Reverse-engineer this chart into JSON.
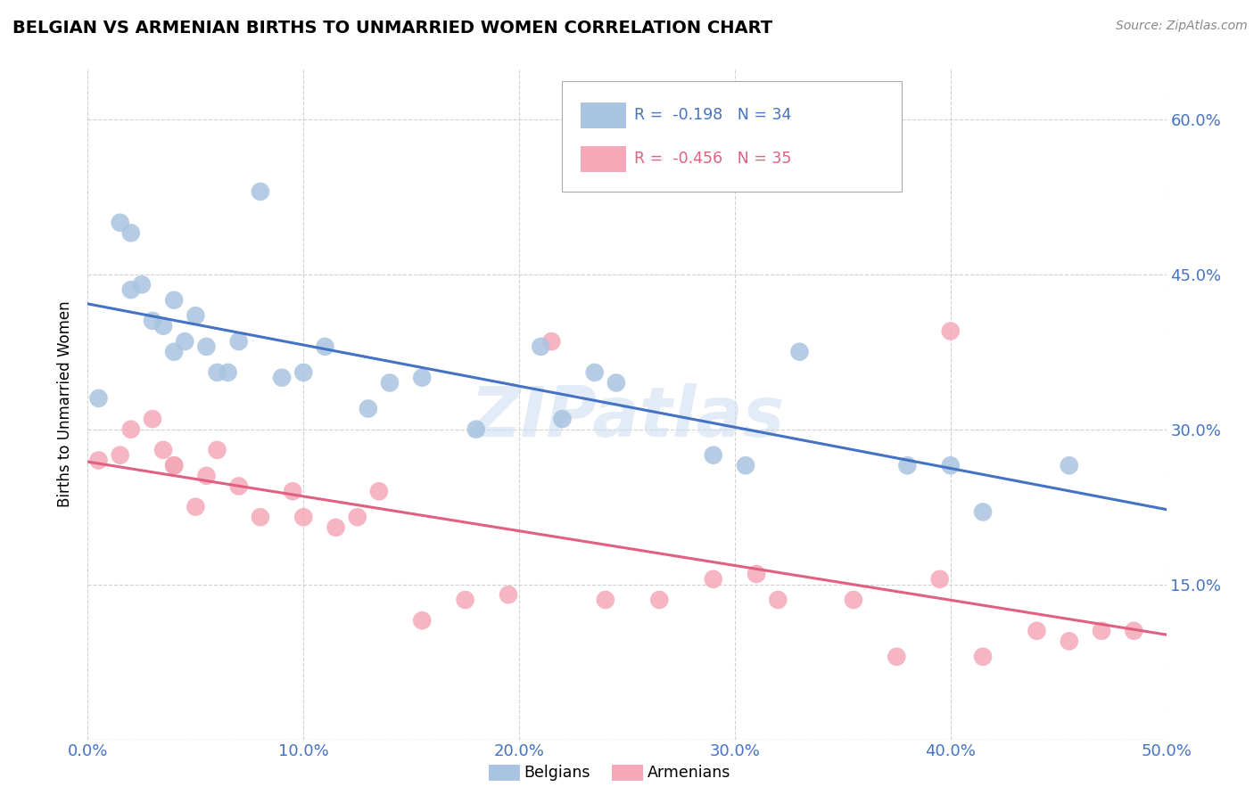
{
  "title": "BELGIAN VS ARMENIAN BIRTHS TO UNMARRIED WOMEN CORRELATION CHART",
  "source": "Source: ZipAtlas.com",
  "ylabel": "Births to Unmarried Women",
  "xlim": [
    0.0,
    0.5
  ],
  "ylim": [
    0.0,
    0.65
  ],
  "xticks": [
    0.0,
    0.1,
    0.2,
    0.3,
    0.4,
    0.5
  ],
  "yticks": [
    0.0,
    0.15,
    0.3,
    0.45,
    0.6
  ],
  "ytick_labels_right": [
    "",
    "15.0%",
    "30.0%",
    "45.0%",
    "60.0%"
  ],
  "xtick_labels": [
    "0.0%",
    "10.0%",
    "20.0%",
    "30.0%",
    "40.0%",
    "50.0%"
  ],
  "belgian_color": "#a8c4e0",
  "armenian_color": "#f4a8b8",
  "belgian_line_color": "#4472c4",
  "armenian_line_color": "#e06080",
  "R_belgian": -0.198,
  "N_belgian": 34,
  "R_armenian": -0.456,
  "N_armenian": 35,
  "watermark": "ZIPatlas",
  "belgian_x": [
    0.005,
    0.015,
    0.02,
    0.02,
    0.025,
    0.03,
    0.035,
    0.04,
    0.04,
    0.045,
    0.05,
    0.055,
    0.06,
    0.065,
    0.07,
    0.08,
    0.09,
    0.1,
    0.11,
    0.13,
    0.14,
    0.155,
    0.18,
    0.21,
    0.22,
    0.235,
    0.245,
    0.29,
    0.305,
    0.33,
    0.38,
    0.4,
    0.415,
    0.455
  ],
  "belgian_y": [
    0.33,
    0.5,
    0.49,
    0.435,
    0.44,
    0.405,
    0.4,
    0.425,
    0.375,
    0.385,
    0.41,
    0.38,
    0.355,
    0.355,
    0.385,
    0.53,
    0.35,
    0.355,
    0.38,
    0.32,
    0.345,
    0.35,
    0.3,
    0.38,
    0.31,
    0.355,
    0.345,
    0.275,
    0.265,
    0.375,
    0.265,
    0.265,
    0.22,
    0.265
  ],
  "armenian_x": [
    0.005,
    0.015,
    0.02,
    0.03,
    0.035,
    0.04,
    0.04,
    0.05,
    0.055,
    0.06,
    0.07,
    0.08,
    0.095,
    0.1,
    0.115,
    0.125,
    0.135,
    0.155,
    0.175,
    0.195,
    0.215,
    0.24,
    0.265,
    0.29,
    0.31,
    0.32,
    0.355,
    0.375,
    0.395,
    0.4,
    0.415,
    0.44,
    0.455,
    0.47,
    0.485
  ],
  "armenian_y": [
    0.27,
    0.275,
    0.3,
    0.31,
    0.28,
    0.265,
    0.265,
    0.225,
    0.255,
    0.28,
    0.245,
    0.215,
    0.24,
    0.215,
    0.205,
    0.215,
    0.24,
    0.115,
    0.135,
    0.14,
    0.385,
    0.135,
    0.135,
    0.155,
    0.16,
    0.135,
    0.135,
    0.08,
    0.155,
    0.395,
    0.08,
    0.105,
    0.095,
    0.105,
    0.105
  ]
}
